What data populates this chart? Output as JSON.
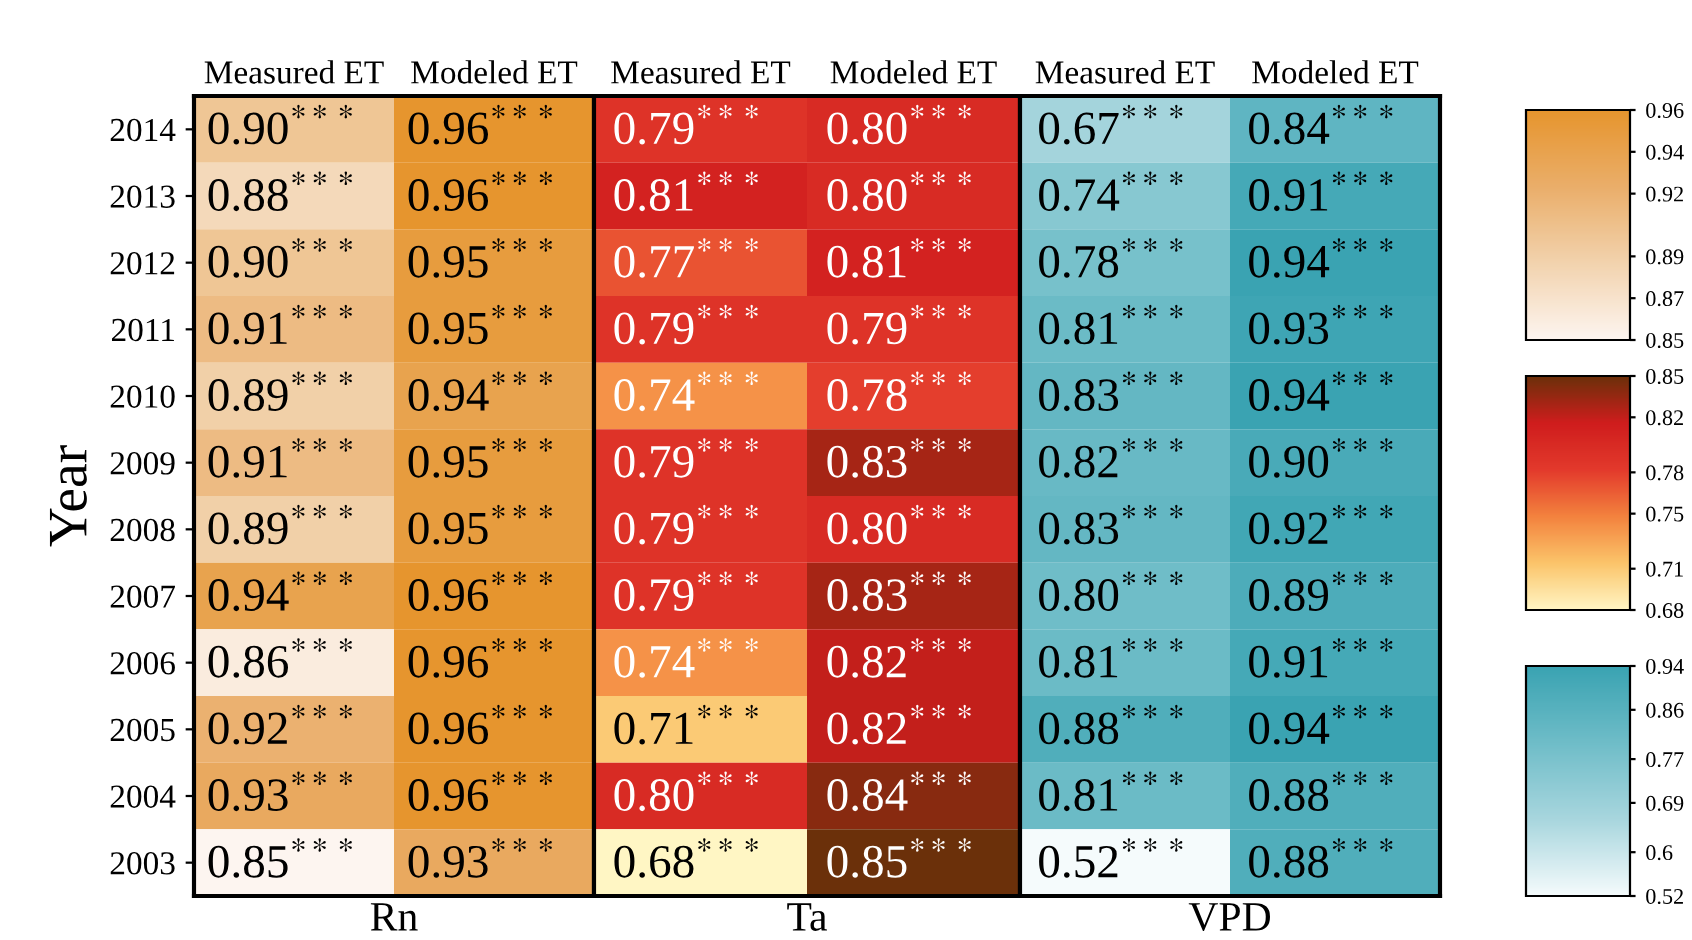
{
  "chart_data": [
    {
      "type": "heatmap",
      "xlabel": "Rn",
      "ylabel": "Year",
      "categories": [
        "Measured ET",
        "Modeled ET"
      ],
      "y_categories": [
        "2014",
        "2013",
        "2012",
        "2011",
        "2010",
        "2009",
        "2008",
        "2007",
        "2006",
        "2005",
        "2004",
        "2003"
      ],
      "cells": [
        [
          0.9,
          0.96
        ],
        [
          0.88,
          0.96
        ],
        [
          0.9,
          0.95
        ],
        [
          0.91,
          0.95
        ],
        [
          0.89,
          0.94
        ],
        [
          0.91,
          0.95
        ],
        [
          0.89,
          0.95
        ],
        [
          0.94,
          0.96
        ],
        [
          0.86,
          0.96
        ],
        [
          0.92,
          0.96
        ],
        [
          0.93,
          0.96
        ],
        [
          0.85,
          0.93
        ]
      ],
      "cell_labels": [
        [
          "0.90$^{***}$",
          "0.96$^{***}$"
        ],
        [
          "0.88$^{***}$",
          "0.96$^{***}$"
        ],
        [
          "0.90$^{***}$",
          "0.95$^{***}$"
        ],
        [
          "0.91$^{***}$",
          "0.95$^{***}$"
        ],
        [
          "0.89$^{***}$",
          "0.94$^{***}$"
        ],
        [
          "0.91$^{***}$",
          "0.95$^{***}$"
        ],
        [
          "0.89$^{***}$",
          "0.95$^{***}$"
        ],
        [
          "0.94$^{***}$",
          "0.96$^{***}$"
        ],
        [
          "0.86$^{***}$",
          "0.96$^{***}$"
        ],
        [
          "0.92$^{***}$",
          "0.96$^{***}$"
        ],
        [
          "0.93$^{***}$",
          "0.96$^{***}$"
        ],
        [
          "0.85$^{***}$",
          "0.93$^{***}$"
        ]
      ],
      "clim": [
        0.85,
        0.96
      ],
      "cticks": [
        0.85,
        0.87,
        0.89,
        0.92,
        0.94,
        0.96
      ]
    },
    {
      "type": "heatmap",
      "xlabel": "Ta",
      "tick_labels": "x",
      "categories": [
        "Measured ET",
        "Modeled ET"
      ],
      "y_categories": [
        "2014",
        "2013",
        "2012",
        "2011",
        "2010",
        "2009",
        "2008",
        "2007",
        "2006",
        "2005",
        "2004",
        "2003"
      ],
      "cells": [
        [
          0.79,
          0.8
        ],
        [
          0.81,
          0.8
        ],
        [
          0.77,
          0.81
        ],
        [
          0.79,
          0.79
        ],
        [
          0.74,
          0.78
        ],
        [
          0.79,
          0.83
        ],
        [
          0.79,
          0.8
        ],
        [
          0.79,
          0.83
        ],
        [
          0.74,
          0.82
        ],
        [
          0.71,
          0.82
        ],
        [
          0.8,
          0.84
        ],
        [
          0.68,
          0.85
        ]
      ],
      "cell_labels": [
        [
          "0.79$^{***}$",
          "0.80$^{***}$"
        ],
        [
          "0.81$^{***}$",
          "0.80$^{***}$"
        ],
        [
          "0.77$^{***}$",
          "0.81$^{***}$"
        ],
        [
          "0.79$^{***}$",
          "0.79$^{***}$"
        ],
        [
          "0.74$^{***}$",
          "0.78$^{***}$"
        ],
        [
          "0.79$^{***}$",
          "0.83$^{***}$"
        ],
        [
          "0.79$^{***}$",
          "0.80$^{***}$"
        ],
        [
          "0.79$^{***}$",
          "0.83$^{***}$"
        ],
        [
          "0.74$^{***}$",
          "0.82$^{***}$"
        ],
        [
          "0.71$^{***}$",
          "0.82$^{***}$"
        ],
        [
          "0.80$^{***}$",
          "0.84$^{***}$"
        ],
        [
          "0.68$^{***}$",
          "0.85$^{***}$"
        ]
      ],
      "clim": [
        0.68,
        0.85
      ],
      "cticks": [
        0.68,
        0.71,
        0.75,
        0.78,
        0.82,
        0.85
      ]
    },
    {
      "type": "heatmap",
      "xlabel": "VPD",
      "tick_labels": "x",
      "categories": [
        "Measured ET",
        "Modeled ET"
      ],
      "y_categories": [
        "2014",
        "2013",
        "2012",
        "2011",
        "2010",
        "2009",
        "2008",
        "2007",
        "2006",
        "2005",
        "2004",
        "2003"
      ],
      "cells": [
        [
          0.67,
          0.84
        ],
        [
          0.74,
          0.91
        ],
        [
          0.78,
          0.94
        ],
        [
          0.81,
          0.93
        ],
        [
          0.83,
          0.94
        ],
        [
          0.82,
          0.9
        ],
        [
          0.83,
          0.92
        ],
        [
          0.8,
          0.89
        ],
        [
          0.81,
          0.91
        ],
        [
          0.88,
          0.94
        ],
        [
          0.81,
          0.88
        ],
        [
          0.52,
          0.88
        ]
      ],
      "cell_labels": [
        [
          "0.67$^{***}$",
          "0.84$^{***}$"
        ],
        [
          "0.74$^{***}$",
          "0.91$^{***}$"
        ],
        [
          "0.78$^{***}$",
          "0.94$^{***}$"
        ],
        [
          "0.81$^{***}$",
          "0.93$^{***}$"
        ],
        [
          "0.83$^{***}$",
          "0.94$^{***}$"
        ],
        [
          "0.82$^{***}$",
          "0.90$^{***}$"
        ],
        [
          "0.83$^{***}$",
          "0.92$^{***}$"
        ],
        [
          "0.80$^{***}$",
          "0.89$^{***}$"
        ],
        [
          "0.81$^{***}$",
          "0.91$^{***}$"
        ],
        [
          "0.88$^{***}$",
          "0.94$^{***}$"
        ],
        [
          "0.81$^{***}$",
          "0.88$^{***}$"
        ],
        [
          "0.52$^{***}$",
          "0.88$^{***}$"
        ]
      ],
      "clim": [
        0.52,
        0.94
      ],
      "cticks": [
        0.52,
        0.6,
        0.69,
        0.77,
        0.86,
        0.94
      ]
    }
  ]
}
